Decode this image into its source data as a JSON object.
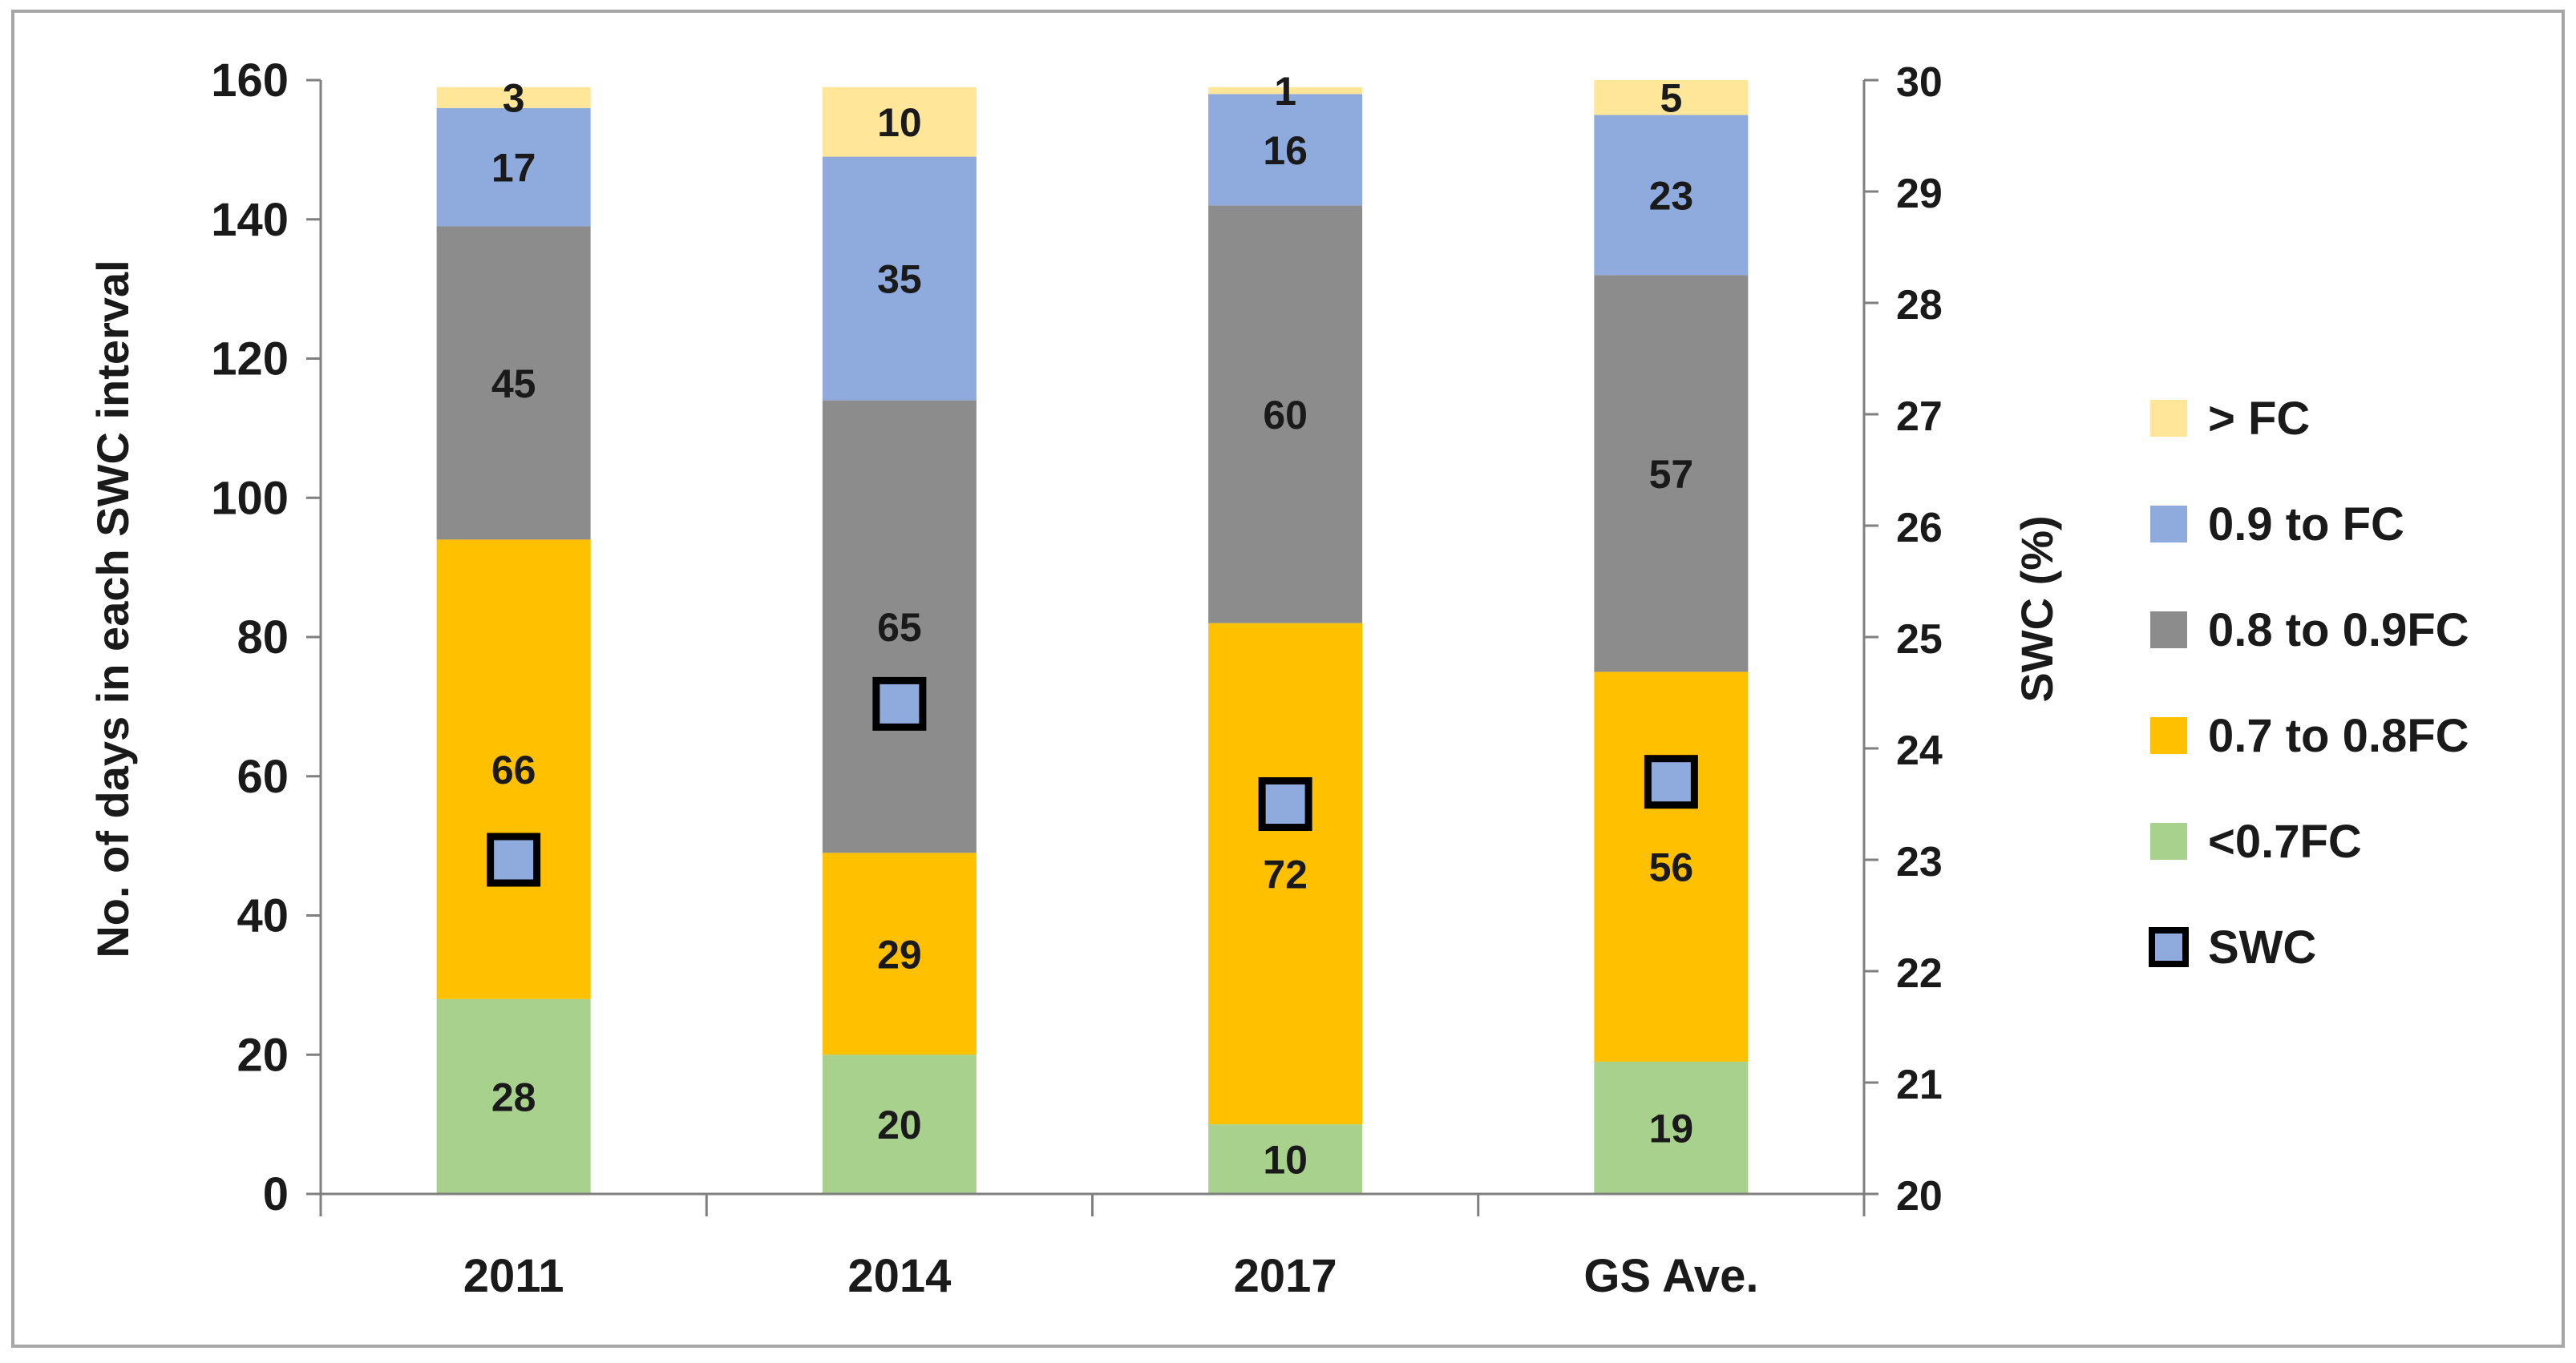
{
  "chart_data": {
    "type": "bar",
    "stacked": true,
    "categories": [
      "2011",
      "2014",
      "2017",
      "GS Ave."
    ],
    "series": [
      {
        "name": "<0.7FC",
        "values": [
          28,
          20,
          10,
          19
        ],
        "color": "#a9d18e"
      },
      {
        "name": "0.7 to 0.8FC",
        "values": [
          66,
          29,
          72,
          56
        ],
        "color": "#ffc000"
      },
      {
        "name": "0.8 to 0.9FC",
        "values": [
          45,
          65,
          60,
          57
        ],
        "color": "#8c8c8c"
      },
      {
        "name": "0.9 to FC",
        "values": [
          17,
          35,
          16,
          23
        ],
        "color": "#8faadc"
      },
      {
        "name": "> FC",
        "values": [
          3,
          10,
          1,
          5
        ],
        "color": "#ffe699"
      }
    ],
    "swc": {
      "name": "SWC",
      "values": [
        23.0,
        24.4,
        23.5,
        23.7
      ],
      "color": "#8faadc",
      "border": "#000000"
    },
    "ylabel": "No. of days in each SWC interval",
    "ylim": [
      0,
      160
    ],
    "yticks": [
      "0",
      "20",
      "40",
      "60",
      "80",
      "100",
      "120",
      "140",
      "160"
    ],
    "y2label": "SWC (%)",
    "y2lim": [
      20,
      30
    ],
    "y2ticks": [
      "20",
      "21",
      "22",
      "23",
      "24",
      "25",
      "26",
      "27",
      "28",
      "29",
      "30"
    ],
    "legend": {
      "position": "right",
      "items": [
        {
          "label": "> FC",
          "color": "#ffe699",
          "marker": "square"
        },
        {
          "label": "0.9 to FC",
          "color": "#8faadc",
          "marker": "square"
        },
        {
          "label": "0.8 to 0.9FC",
          "color": "#8c8c8c",
          "marker": "square"
        },
        {
          "label": "0.7 to 0.8FC",
          "color": "#ffc000",
          "marker": "square"
        },
        {
          "label": "<0.7FC",
          "color": "#a9d18e",
          "marker": "square"
        },
        {
          "label": "SWC",
          "color": "#8faadc",
          "marker": "bordered-square"
        }
      ]
    },
    "grid": false
  }
}
